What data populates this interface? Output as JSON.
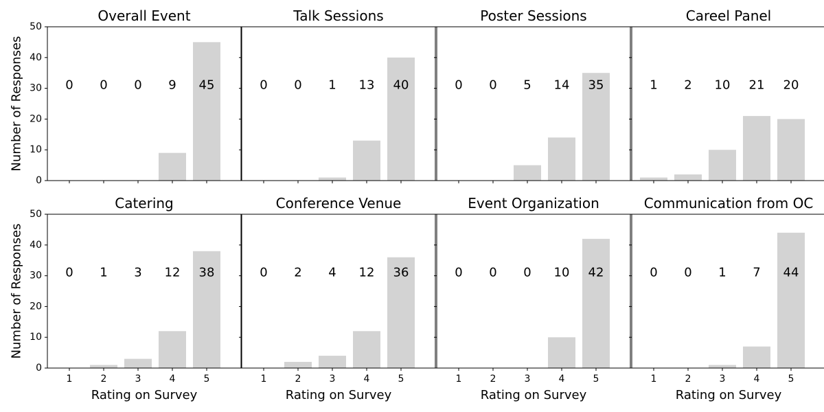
{
  "figure": {
    "ylabel": "Number of Responses",
    "xlabel": "Rating on Survey"
  },
  "chart_data": [
    {
      "type": "bar",
      "title": "Overall Event",
      "categories": [
        "1",
        "2",
        "3",
        "4",
        "5"
      ],
      "values": [
        0,
        0,
        0,
        9,
        45
      ],
      "xlabel": "",
      "ylabel": "Number of Responses",
      "ylim": [
        0,
        50
      ],
      "yticks": [
        0,
        10,
        20,
        30,
        40,
        50
      ],
      "grid": false,
      "bar_color": "#d3d3d3"
    },
    {
      "type": "bar",
      "title": "Talk Sessions",
      "categories": [
        "1",
        "2",
        "3",
        "4",
        "5"
      ],
      "values": [
        0,
        0,
        1,
        13,
        40
      ],
      "xlabel": "",
      "ylabel": "",
      "ylim": [
        0,
        50
      ],
      "yticks": [
        0,
        10,
        20,
        30,
        40,
        50
      ],
      "grid": false,
      "bar_color": "#d3d3d3"
    },
    {
      "type": "bar",
      "title": "Poster Sessions",
      "categories": [
        "1",
        "2",
        "3",
        "4",
        "5"
      ],
      "values": [
        0,
        0,
        5,
        14,
        35
      ],
      "xlabel": "",
      "ylabel": "",
      "ylim": [
        0,
        50
      ],
      "yticks": [
        0,
        10,
        20,
        30,
        40,
        50
      ],
      "grid": false,
      "bar_color": "#d3d3d3"
    },
    {
      "type": "bar",
      "title": "Careel Panel",
      "categories": [
        "1",
        "2",
        "3",
        "4",
        "5"
      ],
      "values": [
        1,
        2,
        10,
        21,
        20
      ],
      "xlabel": "",
      "ylabel": "",
      "ylim": [
        0,
        50
      ],
      "yticks": [
        0,
        10,
        20,
        30,
        40,
        50
      ],
      "grid": false,
      "bar_color": "#d3d3d3"
    },
    {
      "type": "bar",
      "title": "Catering",
      "categories": [
        "1",
        "2",
        "3",
        "4",
        "5"
      ],
      "values": [
        0,
        1,
        3,
        12,
        38
      ],
      "xlabel": "Rating on Survey",
      "ylabel": "Number of Responses",
      "ylim": [
        0,
        50
      ],
      "yticks": [
        0,
        10,
        20,
        30,
        40,
        50
      ],
      "grid": false,
      "bar_color": "#d3d3d3"
    },
    {
      "type": "bar",
      "title": "Conference Venue",
      "categories": [
        "1",
        "2",
        "3",
        "4",
        "5"
      ],
      "values": [
        0,
        2,
        4,
        12,
        36
      ],
      "xlabel": "Rating on Survey",
      "ylabel": "",
      "ylim": [
        0,
        50
      ],
      "yticks": [
        0,
        10,
        20,
        30,
        40,
        50
      ],
      "grid": false,
      "bar_color": "#d3d3d3"
    },
    {
      "type": "bar",
      "title": "Event Organization",
      "categories": [
        "1",
        "2",
        "3",
        "4",
        "5"
      ],
      "values": [
        0,
        0,
        0,
        10,
        42
      ],
      "xlabel": "Rating on Survey",
      "ylabel": "",
      "ylim": [
        0,
        50
      ],
      "yticks": [
        0,
        10,
        20,
        30,
        40,
        50
      ],
      "grid": false,
      "bar_color": "#d3d3d3"
    },
    {
      "type": "bar",
      "title": "Communication from OC",
      "categories": [
        "1",
        "2",
        "3",
        "4",
        "5"
      ],
      "values": [
        0,
        0,
        1,
        7,
        44
      ],
      "xlabel": "Rating on Survey",
      "ylabel": "",
      "ylim": [
        0,
        50
      ],
      "yticks": [
        0,
        10,
        20,
        30,
        40,
        50
      ],
      "grid": false,
      "bar_color": "#d3d3d3"
    }
  ]
}
